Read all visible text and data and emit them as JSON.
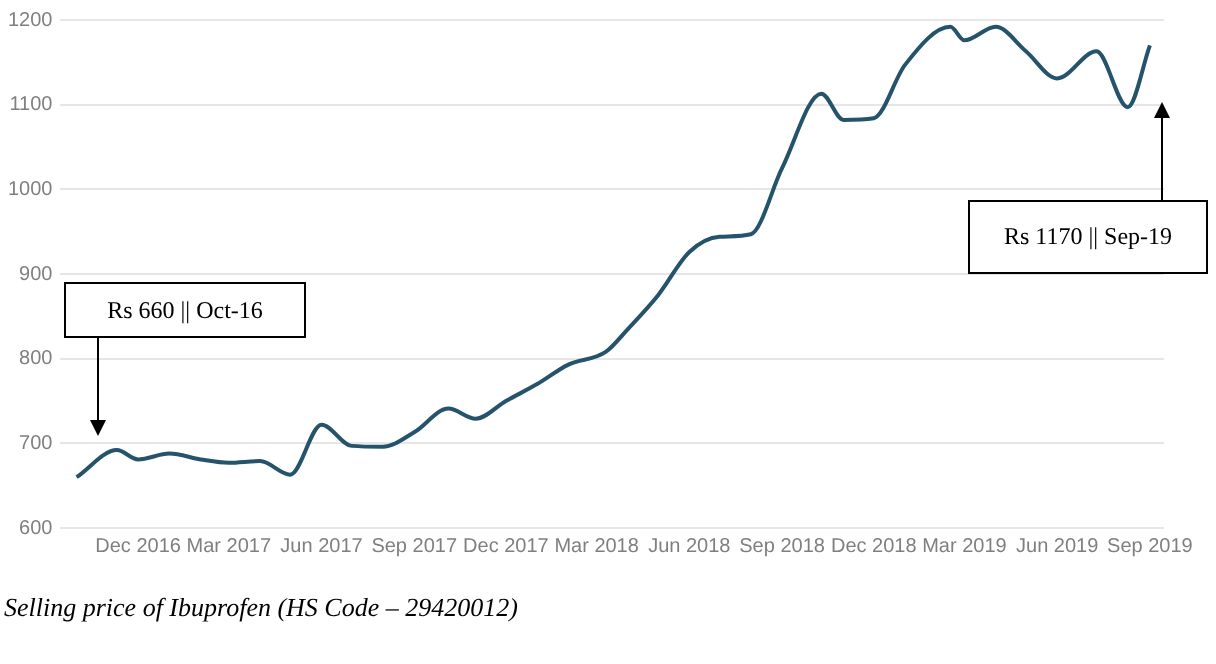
{
  "chart_data": {
    "type": "line",
    "x": [
      "2016-10-01",
      "2016-11-10",
      "2016-12-01",
      "2017-01-01",
      "2017-02-01",
      "2017-03-01",
      "2017-04-01",
      "2017-05-01",
      "2017-06-01",
      "2017-07-01",
      "2017-08-01",
      "2017-09-01",
      "2017-10-05",
      "2017-11-01",
      "2017-12-01",
      "2018-01-01",
      "2018-02-01",
      "2018-03-10",
      "2018-04-01",
      "2018-05-01",
      "2018-06-01",
      "2018-07-01",
      "2018-08-01",
      "2018-09-01",
      "2018-10-10",
      "2018-11-01",
      "2018-12-01",
      "2019-01-01",
      "2019-02-15",
      "2019-03-01",
      "2019-04-01",
      "2019-05-01",
      "2019-06-01",
      "2019-07-10",
      "2019-08-10",
      "2019-09-01"
    ],
    "series": [
      {
        "color": "#25536b",
        "values": [
          660,
          692,
          681,
          688,
          681,
          677,
          679,
          663,
          722,
          697,
          696,
          713,
          741,
          729,
          750,
          770,
          793,
          808,
          835,
          875,
          926,
          944,
          947,
          1025,
          1113,
          1082,
          1084,
          1147,
          1192,
          1176,
          1192,
          1163,
          1131,
          1163,
          1097,
          1170
        ]
      }
    ],
    "xlim": [
      "2016-09-15",
      "2019-09-15"
    ],
    "xticks": [
      {
        "value": "2016-12-01",
        "label": "Dec 2016"
      },
      {
        "value": "2017-03-01",
        "label": "Mar 2017"
      },
      {
        "value": "2017-06-01",
        "label": "Jun 2017"
      },
      {
        "value": "2017-09-01",
        "label": "Sep 2017"
      },
      {
        "value": "2017-12-01",
        "label": "Dec 2017"
      },
      {
        "value": "2018-03-01",
        "label": "Mar 2018"
      },
      {
        "value": "2018-06-01",
        "label": "Jun 2018"
      },
      {
        "value": "2018-09-01",
        "label": "Sep 2018"
      },
      {
        "value": "2018-12-01",
        "label": "Dec 2018"
      },
      {
        "value": "2019-03-01",
        "label": "Mar 2019"
      },
      {
        "value": "2019-06-01",
        "label": "Jun 2019"
      },
      {
        "value": "2019-09-01",
        "label": "Sep 2019"
      }
    ],
    "ylim": [
      600,
      1200
    ],
    "yticks": [
      600,
      700,
      800,
      900,
      1000,
      1100,
      1200
    ],
    "grid": "y",
    "legend": false,
    "marker": "none",
    "line_style": "solid",
    "annotations": [
      "Rs 660 || Oct-16",
      "Rs 1170 || Sep-19",
      "Selling price of Ibuprofen (HS Code – 29420012)"
    ]
  }
}
